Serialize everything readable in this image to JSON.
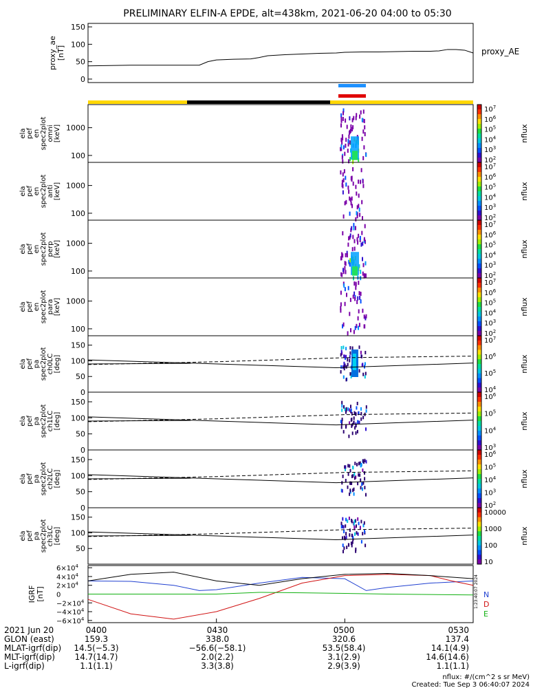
{
  "title": "PRELIMINARY ELFIN-A EPDE, alt=438km, 2021-06-20 04:00 to 05:30",
  "colors": {
    "blue_bar": "#1e90ff",
    "red_bar": "#e00000",
    "yellow": "#ffd700",
    "black": "#000000",
    "igrf_n": "#1f3fd0",
    "igrf_d": "#d01010",
    "igrf_e": "#10b010",
    "igrf_t": "#000000"
  },
  "chart_data": [
    {
      "type": "line",
      "ylabel": "proxy_ae\n[nT]",
      "yticks": [
        "150",
        "100",
        "50",
        "0"
      ],
      "ylim": [
        -10,
        160
      ],
      "series": [
        {
          "name": "proxy_AE",
          "points": [
            [
              0,
              38
            ],
            [
              5,
              39
            ],
            [
              10,
              40
            ],
            [
              15,
              40
            ],
            [
              20,
              40
            ],
            [
              24,
              40
            ],
            [
              26,
              40
            ],
            [
              28,
              50
            ],
            [
              30,
              55
            ],
            [
              34,
              57
            ],
            [
              38,
              58
            ],
            [
              40,
              62
            ],
            [
              42,
              67
            ],
            [
              46,
              70
            ],
            [
              50,
              72
            ],
            [
              54,
              74
            ],
            [
              58,
              75
            ],
            [
              60,
              77
            ],
            [
              64,
              78
            ],
            [
              68,
              78
            ],
            [
              72,
              79
            ],
            [
              76,
              80
            ],
            [
              78,
              80
            ],
            [
              80,
              80
            ],
            [
              82,
              81
            ],
            [
              84,
              85
            ],
            [
              86,
              85
            ],
            [
              88,
              83
            ],
            [
              90,
              75
            ]
          ]
        }
      ]
    },
    {
      "type": "heatmap",
      "ylabel": "ela\npef\nen\nspec2plot\nomni\n[keV]",
      "yticks": [
        "1000",
        "100"
      ],
      "cbar": {
        "label": "nflux",
        "ticks": [
          "10^7",
          "10^6",
          "10^5",
          "10^4",
          "10^3",
          "10^2"
        ]
      }
    },
    {
      "type": "heatmap",
      "ylabel": "ela\npef\nen\nspec2plot\nanti\n[keV]",
      "yticks": [
        "1000",
        "100"
      ],
      "cbar": {
        "label": "nflux",
        "ticks": [
          "10^7",
          "10^6",
          "10^5",
          "10^4",
          "10^3",
          "10^2"
        ]
      }
    },
    {
      "type": "heatmap",
      "ylabel": "ela\npef\nen\nspec2plot\nperp\n[keV]",
      "yticks": [
        "1000",
        "100"
      ],
      "cbar": {
        "label": "nflux",
        "ticks": [
          "10^7",
          "10^6",
          "10^5",
          "10^4",
          "10^3",
          "10^2"
        ]
      }
    },
    {
      "type": "heatmap",
      "ylabel": "ela\npef\nen\nspec2plot\npara\n[keV]",
      "yticks": [
        "1000",
        "100"
      ],
      "cbar": {
        "label": "nflux",
        "ticks": [
          "10^7",
          "10^6",
          "10^5",
          "10^4",
          "10^3",
          "10^2"
        ]
      }
    },
    {
      "type": "heatmap",
      "ylabel": "ela\npef\npa\nspec2plot\nch0LC\n[deg]",
      "yticks": [
        "150",
        "100",
        "50",
        "0"
      ],
      "cbar": {
        "label": "nflux",
        "ticks": [
          "10^7",
          "10^6",
          "10^5",
          "10^4"
        ]
      }
    },
    {
      "type": "heatmap",
      "ylabel": "ela\npef\npa\nspec2plot\nch1LC\n[deg]",
      "yticks": [
        "150",
        "100",
        "50",
        "0"
      ],
      "cbar": {
        "label": "nflux",
        "ticks": [
          "10^6",
          "10^5",
          "10^4",
          "10^3"
        ]
      }
    },
    {
      "type": "heatmap",
      "ylabel": "ela\npef\npa\nspec2plot\nch2LC\n[deg]",
      "yticks": [
        "150",
        "100",
        "50",
        "0"
      ],
      "cbar": {
        "label": "nflux",
        "ticks": [
          "10^6",
          "10^5",
          "10^4",
          "10^3",
          "10^2"
        ]
      }
    },
    {
      "type": "heatmap",
      "ylabel": "ela\npef\npa\nspec2plot\nch3LC\n[deg]",
      "yticks": [
        "150",
        "100",
        "50"
      ],
      "cbar": {
        "label": "nflux",
        "ticks": [
          "10000",
          "1000",
          "100",
          "10"
        ]
      }
    },
    {
      "type": "line",
      "ylabel": "IGRF\n[nT]",
      "yticks": [
        "6×10^4",
        "4×10^4",
        "2×10^4",
        "0",
        "−2×10^4",
        "−4×10^4",
        "−6×10^4"
      ],
      "ylim": [
        -65000,
        65000
      ],
      "series": [
        {
          "name": "N",
          "points": [
            [
              0,
              30000
            ],
            [
              10,
              29000
            ],
            [
              20,
              20000
            ],
            [
              26,
              8000
            ],
            [
              30,
              10000
            ],
            [
              40,
              25000
            ],
            [
              50,
              38000
            ],
            [
              60,
              35000
            ],
            [
              65,
              8000
            ],
            [
              70,
              15000
            ],
            [
              80,
              25000
            ],
            [
              90,
              30000
            ]
          ]
        },
        {
          "name": "D",
          "points": [
            [
              0,
              -12000
            ],
            [
              10,
              -45000
            ],
            [
              20,
              -57000
            ],
            [
              30,
              -40000
            ],
            [
              40,
              -10000
            ],
            [
              50,
              25000
            ],
            [
              60,
              42000
            ],
            [
              70,
              45000
            ],
            [
              80,
              42000
            ],
            [
              85,
              30000
            ],
            [
              90,
              20000
            ]
          ]
        },
        {
          "name": "E",
          "points": [
            [
              0,
              0
            ],
            [
              10,
              0
            ],
            [
              20,
              0
            ],
            [
              30,
              0
            ],
            [
              40,
              4000
            ],
            [
              50,
              3000
            ],
            [
              60,
              1500
            ],
            [
              70,
              0
            ],
            [
              80,
              -1000
            ],
            [
              90,
              -2000
            ]
          ]
        },
        {
          "name": "",
          "points": [
            [
              0,
              30000
            ],
            [
              10,
              45000
            ],
            [
              20,
              50000
            ],
            [
              30,
              30000
            ],
            [
              40,
              20000
            ],
            [
              50,
              35000
            ],
            [
              60,
              45000
            ],
            [
              70,
              47000
            ],
            [
              80,
              42000
            ],
            [
              90,
              35000
            ]
          ]
        }
      ]
    }
  ],
  "axes_text": {
    "vertical_stamp": "1:23:40:07 2024",
    "proxy_label": "proxy_AE"
  },
  "footer_rows": [
    {
      "label": "2021 Jun 20",
      "v1": "0400",
      "v2": "0430",
      "v3": "0500",
      "v4": "0530"
    },
    {
      "label": "GLON (east)",
      "v1": "159.3",
      "v2": "338.0",
      "v3": "320.6",
      "v4": "137.4"
    },
    {
      "label": "MLAT-igrf(dip)",
      "v1": "14.5(−5.3)",
      "v2": "−56.6(−58.1)",
      "v3": "53.5(58.4)",
      "v4": "14.1(4.9)"
    },
    {
      "label": "MLT-igrf(dip)",
      "v1": "14.7(14.7)",
      "v2": "2.0(2.2)",
      "v3": "3.1(2.9)",
      "v4": "14.6(14.6)"
    },
    {
      "label": "L-igrf(dip)",
      "v1": "1.1(1.1)",
      "v2": "3.3(3.8)",
      "v3": "2.9(3.9)",
      "v4": "1.1(1.1)"
    }
  ],
  "bottom_note_1": "nflux: #/(cm^2 s sr MeV)",
  "bottom_note_2": "Created: Tue Sep  3 06:40:07 2024",
  "igrf_letters": [
    "N",
    "D",
    "E"
  ]
}
